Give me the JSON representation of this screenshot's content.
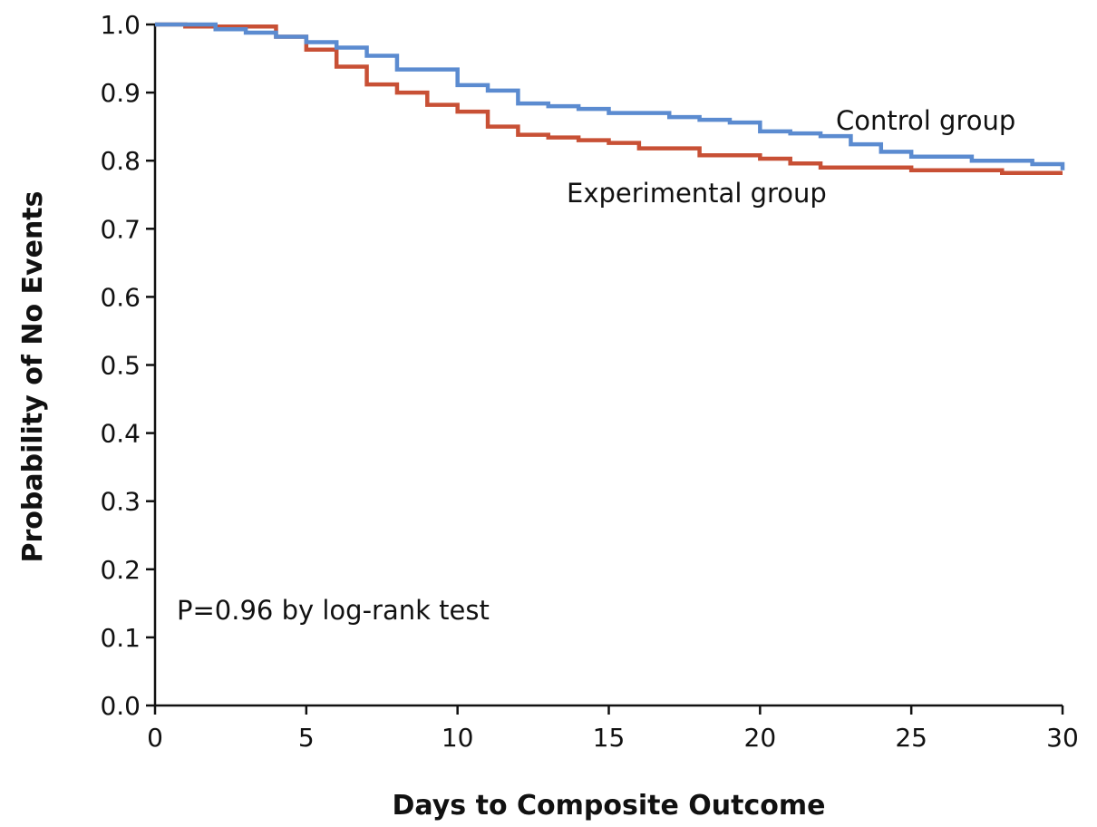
{
  "chart_data": {
    "type": "line",
    "title": "",
    "xlabel": "Days to Composite Outcome",
    "ylabel": "Probability of No Events",
    "xlim": [
      0,
      30
    ],
    "ylim": [
      0.0,
      1.0
    ],
    "x_ticks": [
      0,
      5,
      10,
      15,
      20,
      25,
      30
    ],
    "x_tick_labels": [
      "0",
      "5",
      "10",
      "15",
      "20",
      "25",
      "30"
    ],
    "y_ticks": [
      0.0,
      0.1,
      0.2,
      0.3,
      0.4,
      0.5,
      0.6,
      0.7,
      0.8,
      0.9,
      1.0
    ],
    "y_tick_labels": [
      "0.0",
      "0.1",
      "0.2",
      "0.3",
      "0.4",
      "0.5",
      "0.6",
      "0.7",
      "0.8",
      "0.9",
      "1.0"
    ],
    "grid": false,
    "step": true,
    "series": [
      {
        "name": "Control group",
        "color": "#5b8bd0",
        "x": [
          0,
          2,
          3,
          4,
          5,
          6,
          7,
          8,
          10,
          11,
          12,
          13,
          14,
          15,
          17,
          18,
          19,
          20,
          21,
          22,
          23,
          24,
          25,
          27,
          29,
          30
        ],
        "y": [
          1.0,
          0.993,
          0.988,
          0.982,
          0.974,
          0.966,
          0.954,
          0.934,
          0.911,
          0.903,
          0.884,
          0.88,
          0.876,
          0.87,
          0.864,
          0.86,
          0.856,
          0.843,
          0.84,
          0.836,
          0.824,
          0.813,
          0.806,
          0.8,
          0.795,
          0.786
        ]
      },
      {
        "name": "Experimental group",
        "color": "#c85035",
        "x": [
          0,
          1,
          4,
          5,
          6,
          7,
          8,
          9,
          10,
          11,
          12,
          13,
          14,
          15,
          16,
          18,
          20,
          21,
          22,
          25,
          28,
          30
        ],
        "y": [
          1.0,
          0.997,
          0.982,
          0.963,
          0.938,
          0.912,
          0.9,
          0.882,
          0.872,
          0.85,
          0.838,
          0.834,
          0.83,
          0.826,
          0.818,
          0.808,
          0.803,
          0.796,
          0.79,
          0.786,
          0.782,
          0.782
        ]
      }
    ],
    "annotations": [
      {
        "text": "P=0.96 by log-rank test",
        "x": 0.7,
        "y": 0.14
      }
    ]
  }
}
